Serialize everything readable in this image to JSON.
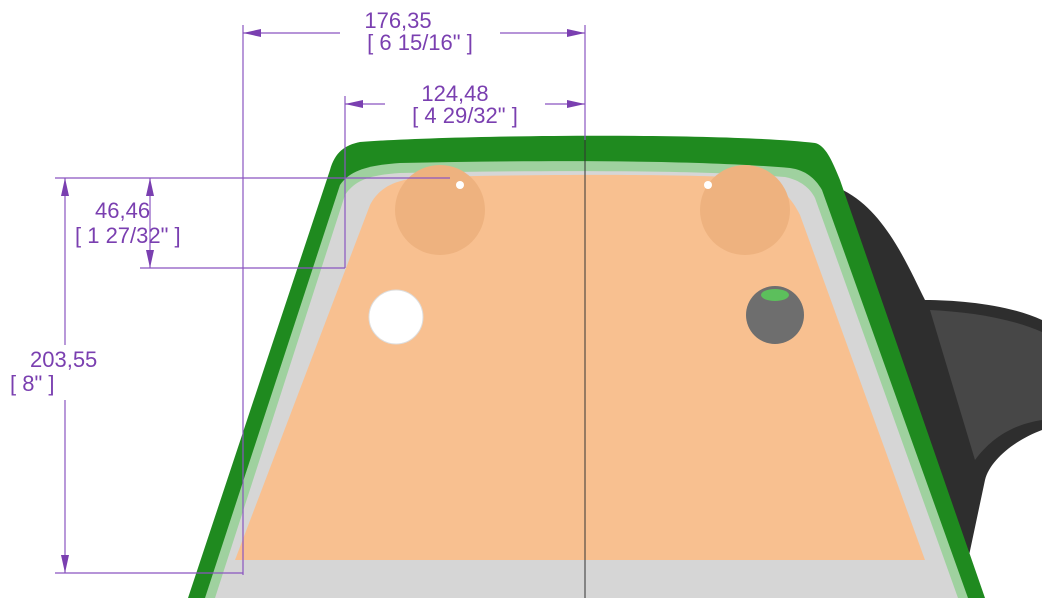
{
  "dimensions": [
    {
      "metric": "176,35",
      "imperial": "[ 6 15/16\" ]"
    },
    {
      "metric": "124,48",
      "imperial": "[ 4 29/32\" ]"
    },
    {
      "metric": "46,46",
      "imperial": "[ 1 27/32\" ]"
    },
    {
      "metric": "203,55",
      "imperial": "[ 8\" ]"
    }
  ]
}
